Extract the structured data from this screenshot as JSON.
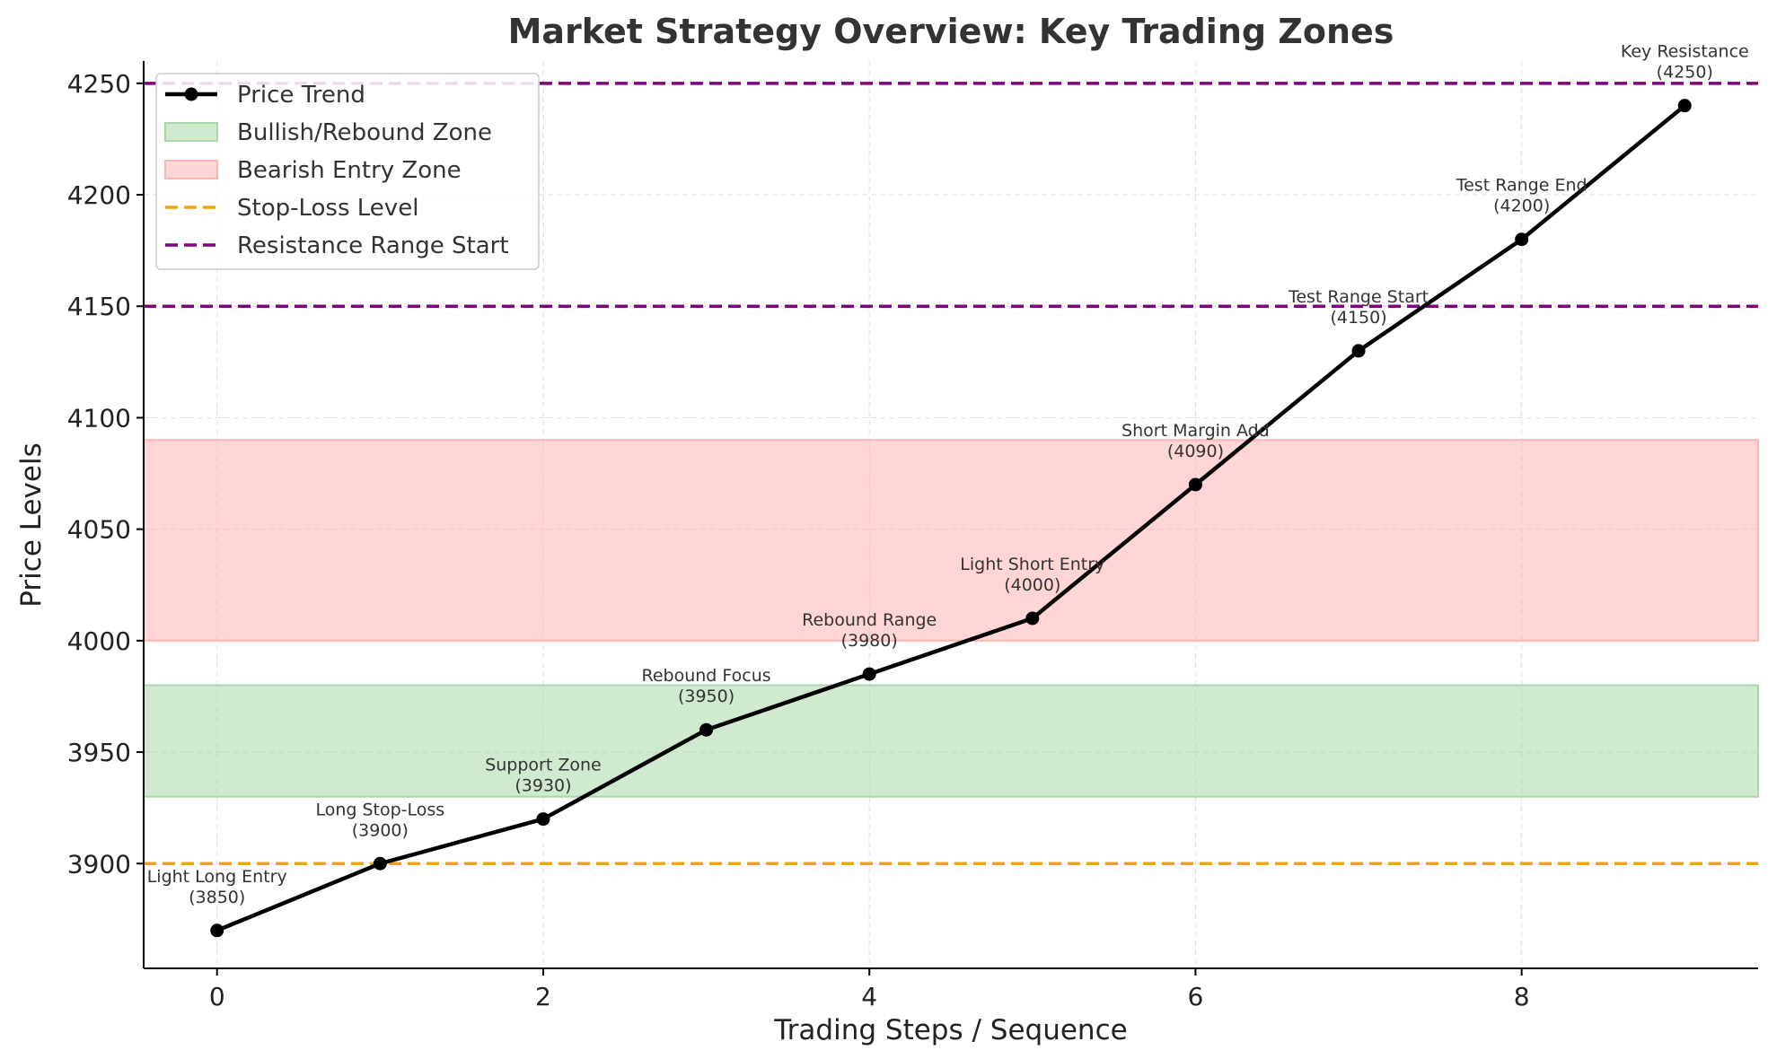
{
  "chart_data": {
    "type": "line",
    "title": "Market Strategy Overview: Key Trading Zones",
    "xlabel": "Trading Steps / Sequence",
    "ylabel": "Price Levels",
    "xlim": [
      -0.45,
      9.45
    ],
    "ylim": [
      3853,
      4260
    ],
    "x_ticks": [
      0,
      2,
      4,
      6,
      8
    ],
    "y_ticks": [
      3900,
      3950,
      4000,
      4050,
      4100,
      4150,
      4200,
      4250
    ],
    "grid": true,
    "legend_position": "top-left",
    "series": [
      {
        "name": "Price Trend",
        "color": "#000000",
        "x": [
          0,
          1,
          2,
          3,
          4,
          5,
          6,
          7,
          8,
          9
        ],
        "y": [
          3870,
          3900,
          3920,
          3960,
          3985,
          4010,
          4070,
          4130,
          4180,
          4240
        ]
      }
    ],
    "zones": [
      {
        "name": "Bullish/Rebound Zone",
        "from": 3930,
        "to": 3980,
        "color": "#a8d8a8"
      },
      {
        "name": "Bearish Entry Zone",
        "from": 4000,
        "to": 4090,
        "color": "#ffb3b3"
      }
    ],
    "reference_lines": [
      {
        "name": "Stop-Loss Level",
        "y": 3900,
        "color": "#f0a500"
      },
      {
        "name": "Resistance Range Start",
        "y": 4150,
        "color": "#800080"
      },
      {
        "name": "",
        "y": 4250,
        "color": "#800080"
      }
    ],
    "annotations": [
      {
        "x": 0,
        "y": 3870,
        "label": "Light Long Entry",
        "value": "(3850)"
      },
      {
        "x": 1,
        "y": 3900,
        "label": "Long Stop-Loss",
        "value": "(3900)"
      },
      {
        "x": 2,
        "y": 3920,
        "label": "Support Zone",
        "value": "(3930)"
      },
      {
        "x": 3,
        "y": 3960,
        "label": "Rebound Focus",
        "value": "(3950)"
      },
      {
        "x": 4,
        "y": 3985,
        "label": "Rebound Range",
        "value": "(3980)"
      },
      {
        "x": 5,
        "y": 4010,
        "label": "Light Short Entry",
        "value": "(4000)"
      },
      {
        "x": 6,
        "y": 4070,
        "label": "Short Margin Add",
        "value": "(4090)"
      },
      {
        "x": 7,
        "y": 4130,
        "label": "Test Range Start",
        "value": "(4150)"
      },
      {
        "x": 8,
        "y": 4180,
        "label": "Test Range End",
        "value": "(4200)"
      },
      {
        "x": 9,
        "y": 4240,
        "label": "Key Resistance",
        "value": "(4250)"
      }
    ],
    "legend": [
      {
        "label": "Price Trend",
        "kind": "line-marker",
        "color": "#000000"
      },
      {
        "label": "Bullish/Rebound Zone",
        "kind": "patch",
        "color": "#a8d8a8"
      },
      {
        "label": "Bearish Entry Zone",
        "kind": "patch",
        "color": "#ffb3b3"
      },
      {
        "label": "Stop-Loss Level",
        "kind": "dashed",
        "color": "#f0a500"
      },
      {
        "label": "Resistance Range Start",
        "kind": "dashed",
        "color": "#800080"
      }
    ]
  }
}
